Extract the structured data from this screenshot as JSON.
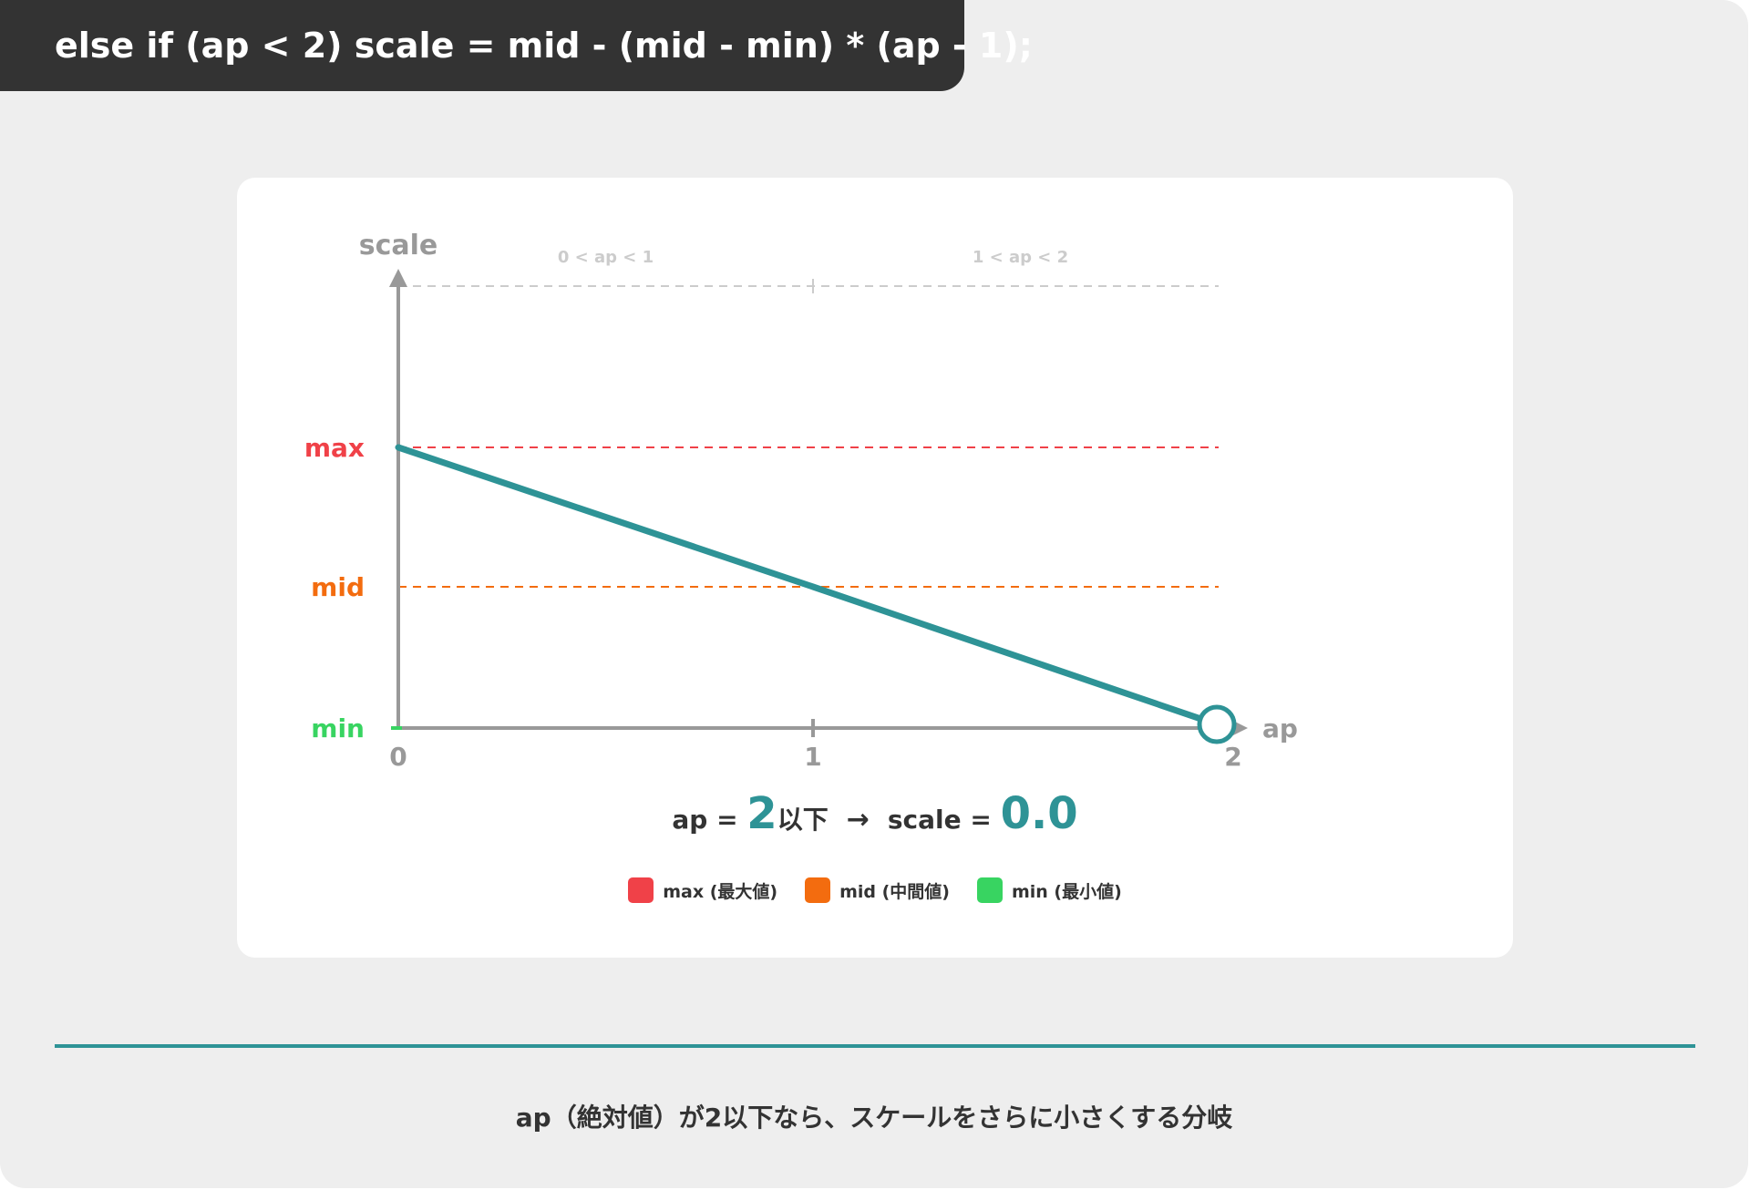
{
  "code_banner": "else if (ap < 2) scale = mid - (mid - min) * (ap - 1);",
  "colors": {
    "max": "#f04148",
    "mid": "#f36c0f",
    "min": "#38d461",
    "line": "#2e9396",
    "axis": "#999999",
    "grid_top": "#cccccc",
    "text_dark": "#333333"
  },
  "chart_data": {
    "type": "line",
    "y_axis_label": "scale",
    "x_axis_label": "ap",
    "x_ticks": [
      "0",
      "1",
      "2"
    ],
    "y_levels": [
      "max",
      "mid",
      "min"
    ],
    "regions": [
      "0 < ap < 1",
      "1 < ap < 2"
    ],
    "series": [
      {
        "x": [
          0,
          1,
          2
        ],
        "y": [
          "max",
          "mid",
          "min"
        ],
        "end_marker": "open-circle"
      }
    ],
    "result": {
      "ap_prefix": "ap = ",
      "ap_value": "2",
      "ap_suffix": "以下",
      "arrow": "→",
      "scale_prefix": "scale = ",
      "scale_value": "0.0"
    }
  },
  "legend": [
    {
      "label": "max (最大値)",
      "color": "#f04148"
    },
    {
      "label": "mid (中間値)",
      "color": "#f36c0f"
    },
    {
      "label": "min (最小値)",
      "color": "#38d461"
    }
  ],
  "caption": "ap（絶対値）が2以下なら、スケールをさらに小さくする分岐"
}
